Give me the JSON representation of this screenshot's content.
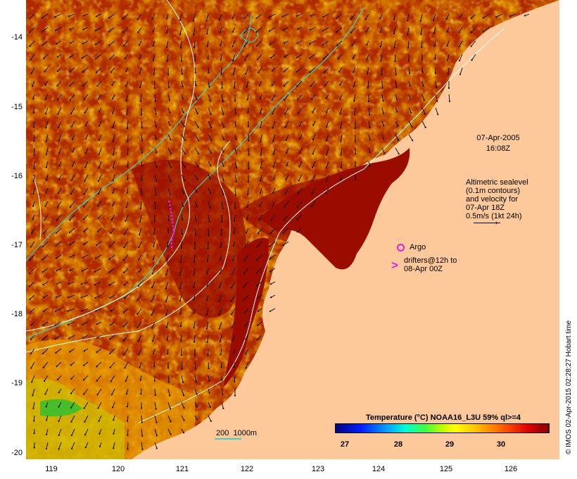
{
  "map": {
    "y_ticks": [
      "-14",
      "-15",
      "-16",
      "-17",
      "-18",
      "-19",
      "-20"
    ],
    "x_ticks": [
      "119",
      "120",
      "121",
      "122",
      "123",
      "124",
      "125",
      "126"
    ],
    "date_label": "07-Apr-2005",
    "time_label": "16:08Z",
    "sealevel_note": "Altimetric sealevel\n(0.1m contours)\nand velocity for\n07-Apr 18Z\n0.5m/s (1kt 24h)",
    "argo_label": "Argo",
    "drifters_label": "drifters@12h to\n08-Apr 00Z",
    "scale_label": "200  1000m",
    "credit": "© IMOS 02-Apr-2015 02:28:27 Hobart time",
    "colorbar": {
      "title": "Temperature (°C) NOAA16_L3U 59% ql>=4",
      "ticks": [
        "27",
        "28",
        "29",
        "30"
      ],
      "range": [
        26.7,
        30.9
      ]
    },
    "colors": {
      "land": "#fdc99a",
      "sea_warm": "#a01000",
      "sea_mid": "#d05000",
      "sea_cool": "#e8a000",
      "cool_patch": "#30c030",
      "isobath": "#40d0c0",
      "contour": "#ffffff",
      "argo": "#e020e0",
      "drifter": "#e020e0"
    }
  }
}
